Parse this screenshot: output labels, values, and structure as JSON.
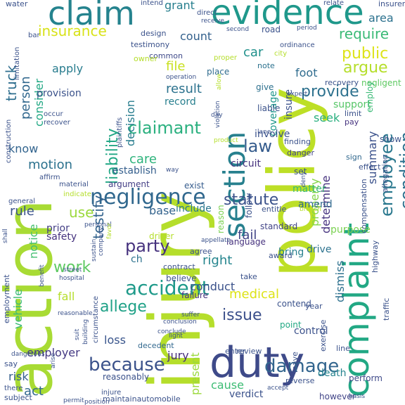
{
  "words": [
    {
      "text": "injury",
      "color": "#b5de2b"
    },
    {
      "text": "action",
      "color": "#a8db34"
    },
    {
      "text": "policy",
      "color": "#bddf26"
    },
    {
      "text": "evidence",
      "color": "#1f988b"
    },
    {
      "text": "claim",
      "color": "#25838e"
    },
    {
      "text": "duty",
      "color": "#3e4a89"
    },
    {
      "text": "complaint",
      "color": "#22a884"
    },
    {
      "text": "section",
      "color": "#27808e"
    },
    {
      "text": "negligence",
      "color": "#31688e"
    },
    {
      "text": "because",
      "color": "#3b528b"
    },
    {
      "text": "damage",
      "color": "#32658e"
    },
    {
      "text": "accident",
      "color": "#1f9a8a"
    },
    {
      "text": "employee",
      "color": "#2a788e"
    },
    {
      "text": "condition",
      "color": "#2c718e"
    },
    {
      "text": "party",
      "color": "#46327e"
    },
    {
      "text": "claimant",
      "color": "#2ab07f"
    },
    {
      "text": "insurance",
      "color": "#d8e219"
    },
    {
      "text": "allege",
      "color": "#1fa187"
    },
    {
      "text": "issue",
      "color": "#3c508b"
    },
    {
      "text": "statute",
      "color": "#3b528b"
    },
    {
      "text": "law",
      "color": "#365c8d"
    },
    {
      "text": "provide",
      "color": "#2d718e"
    },
    {
      "text": "work",
      "color": "#5ec962"
    },
    {
      "text": "testify",
      "color": "#33638d"
    },
    {
      "text": "liability",
      "color": "#22a785"
    },
    {
      "text": "truck",
      "color": "#2e6e8e"
    },
    {
      "text": "public",
      "color": "#dde318"
    },
    {
      "text": "argue",
      "color": "#b5de2b"
    },
    {
      "text": "require",
      "color": "#3aba76"
    },
    {
      "text": "grant",
      "color": "#277f8e"
    },
    {
      "text": "count",
      "color": "#34618d"
    },
    {
      "text": "car",
      "color": "#21918c"
    },
    {
      "text": "file",
      "color": "#c8e020"
    },
    {
      "text": "result",
      "color": "#2c728e"
    },
    {
      "text": "record",
      "color": "#277f8e"
    },
    {
      "text": "person",
      "color": "#31688e"
    },
    {
      "text": "consider",
      "color": "#22a884"
    },
    {
      "text": "apply",
      "color": "#287c8e"
    },
    {
      "text": "motion",
      "color": "#2c728e"
    },
    {
      "text": "care",
      "color": "#2eb37c"
    },
    {
      "text": "rule",
      "color": "#3b528b"
    },
    {
      "text": "use",
      "color": "#9bd93c"
    },
    {
      "text": "right",
      "color": "#25858e"
    },
    {
      "text": "fail",
      "color": "#414487"
    },
    {
      "text": "medical",
      "color": "#dde318"
    },
    {
      "text": "conduct",
      "color": "#3b528b"
    },
    {
      "text": "cause",
      "color": "#3dbc74"
    },
    {
      "text": "jury",
      "color": "#472d7b"
    },
    {
      "text": "act",
      "color": "#31688e"
    },
    {
      "text": "risk",
      "color": "#355f8d"
    },
    {
      "text": "loss",
      "color": "#39558c"
    },
    {
      "text": "employer",
      "color": "#443983"
    },
    {
      "text": "vehicle",
      "color": "#3aba76"
    },
    {
      "text": "notice",
      "color": "#44bf70"
    },
    {
      "text": "base",
      "color": "#33638d"
    },
    {
      "text": "decision",
      "color": "#287d8e"
    },
    {
      "text": "determine",
      "color": "#46337f"
    },
    {
      "text": "dismiss",
      "color": "#2d708e"
    },
    {
      "text": "property",
      "color": "#85d54a"
    },
    {
      "text": "seek",
      "color": "#29af7f"
    },
    {
      "text": "foot",
      "color": "#2f6c8e"
    },
    {
      "text": "insure",
      "color": "#3b518b"
    },
    {
      "text": "coverage",
      "color": "#1f978b"
    },
    {
      "text": "summary",
      "color": "#3b518b"
    },
    {
      "text": "verdict",
      "color": "#3b528b"
    },
    {
      "text": "present",
      "color": "#9bd93c"
    },
    {
      "text": "circuit",
      "color": "#46327e"
    },
    {
      "text": "bring",
      "color": "#277f8e"
    },
    {
      "text": "prior",
      "color": "#433e85"
    },
    {
      "text": "safety",
      "color": "#46337f"
    },
    {
      "text": "provision",
      "color": "#3b528b"
    },
    {
      "text": "establish",
      "color": "#355f8d"
    },
    {
      "text": "involve",
      "color": "#3b528b"
    },
    {
      "text": "support",
      "color": "#56c667"
    },
    {
      "text": "know",
      "color": "#32648e"
    },
    {
      "text": "matter",
      "color": "#3aba76"
    },
    {
      "text": "amend",
      "color": "#31688e"
    },
    {
      "text": "purpose",
      "color": "#7ad151"
    },
    {
      "text": "exist",
      "color": "#365c8d"
    },
    {
      "text": "include",
      "color": "#2a788e"
    },
    {
      "text": "argument",
      "color": "#433e85"
    },
    {
      "text": "believe",
      "color": "#3b528b"
    },
    {
      "text": "fall",
      "color": "#b5de2b"
    },
    {
      "text": "failure",
      "color": "#46327e"
    },
    {
      "text": "drive",
      "color": "#2c728e"
    },
    {
      "text": "area",
      "color": "#2c718e"
    },
    {
      "text": "however",
      "color": "#414487"
    },
    {
      "text": "reasonably",
      "color": "#3b528b"
    },
    {
      "text": "maintainautomobile",
      "color": "#3b528b"
    },
    {
      "text": "perform",
      "color": "#3e4989"
    },
    {
      "text": "decedent",
      "color": "#31688e"
    },
    {
      "text": "control",
      "color": "#3b518b"
    },
    {
      "text": "death",
      "color": "#25838e"
    },
    {
      "text": "ch",
      "color": "#2c728e"
    },
    {
      "text": "place",
      "color": "#2f6c8e"
    },
    {
      "text": "common",
      "color": "#3e4989"
    },
    {
      "text": "note",
      "color": "#2c728e"
    },
    {
      "text": "give",
      "color": "#2d708e"
    },
    {
      "text": "liable",
      "color": "#3b528b"
    },
    {
      "text": "lane",
      "color": "#3b528b"
    },
    {
      "text": "pay",
      "color": "#46337f"
    },
    {
      "text": "limit",
      "color": "#3b528b"
    },
    {
      "text": "recovery",
      "color": "#3b528b"
    },
    {
      "text": "negligent",
      "color": "#5ec962"
    },
    {
      "text": "employ",
      "color": "#3aba76"
    },
    {
      "text": "show",
      "color": "#3b528b"
    },
    {
      "text": "sign",
      "color": "#31688e"
    },
    {
      "text": "danger",
      "color": "#414487"
    },
    {
      "text": "finding",
      "color": "#3b528b"
    },
    {
      "text": "set",
      "color": "#3b528b"
    },
    {
      "text": "entitle",
      "color": "#3b528b"
    },
    {
      "text": "standard",
      "color": "#414487"
    },
    {
      "text": "language",
      "color": "#46327e"
    },
    {
      "text": "follow",
      "color": "#3b528b"
    },
    {
      "text": "reason",
      "color": "#7ad151"
    },
    {
      "text": "agree",
      "color": "#3b528b"
    },
    {
      "text": "award",
      "color": "#3b528b"
    },
    {
      "text": "contract",
      "color": "#3b528b"
    },
    {
      "text": "take",
      "color": "#3b528b"
    },
    {
      "text": "driver",
      "color": "#b5de2b"
    },
    {
      "text": "contend",
      "color": "#3b528b"
    },
    {
      "text": "point",
      "color": "#22a884"
    },
    {
      "text": "year",
      "color": "#3b528b"
    },
    {
      "text": "review",
      "color": "#3b528b"
    },
    {
      "text": "enter",
      "color": "#3b528b"
    },
    {
      "text": "leave",
      "color": "#3b528b"
    },
    {
      "text": "reverse",
      "color": "#3b528b"
    },
    {
      "text": "exercise",
      "color": "#3b528b"
    },
    {
      "text": "line",
      "color": "#3b528b"
    },
    {
      "text": "traffic",
      "color": "#3b528b"
    },
    {
      "text": "highway",
      "color": "#3b528b"
    },
    {
      "text": "compensation",
      "color": "#3b528b"
    },
    {
      "text": "allegation",
      "color": "#3b528b"
    },
    {
      "text": "effect",
      "color": "#3b528b"
    },
    {
      "text": "road",
      "color": "#3b528b"
    },
    {
      "text": "design",
      "color": "#3b528b"
    },
    {
      "text": "testimony",
      "color": "#3b528b"
    },
    {
      "text": "owner",
      "color": "#b5de2b"
    },
    {
      "text": "city",
      "color": "#b5de2b"
    },
    {
      "text": "ordinance",
      "color": "#3b528b"
    },
    {
      "text": "second",
      "color": "#3b528b"
    },
    {
      "text": "direct",
      "color": "#3b528b"
    },
    {
      "text": "receive",
      "color": "#3b528b"
    },
    {
      "text": "intend",
      "color": "#3b528b"
    },
    {
      "text": "relate",
      "color": "#3b528b"
    },
    {
      "text": "insurer",
      "color": "#3b528b"
    },
    {
      "text": "limitation",
      "color": "#3b528b"
    },
    {
      "text": "water",
      "color": "#3b528b"
    },
    {
      "text": "bar",
      "color": "#3b528b"
    },
    {
      "text": "construction",
      "color": "#3b528b"
    },
    {
      "text": "occur",
      "color": "#3b528b"
    },
    {
      "text": "recover",
      "color": "#3b528b"
    },
    {
      "text": "operation",
      "color": "#3b528b"
    },
    {
      "text": "violation",
      "color": "#3b528b"
    },
    {
      "text": "plaintiffs",
      "color": "#3b528b"
    },
    {
      "text": "affirm",
      "color": "#3b528b"
    },
    {
      "text": "material",
      "color": "#3b528b"
    },
    {
      "text": "indicate",
      "color": "#b5de2b"
    },
    {
      "text": "general",
      "color": "#3b528b"
    },
    {
      "text": "shall",
      "color": "#3b528b"
    },
    {
      "text": "personal",
      "color": "#3b528b"
    },
    {
      "text": "favor",
      "color": "#b5de2b"
    },
    {
      "text": "sustain",
      "color": "#3b528b"
    },
    {
      "text": "company",
      "color": "#3b528b"
    },
    {
      "text": "appellate",
      "color": "#3b528b"
    },
    {
      "text": "street",
      "color": "#3b528b"
    },
    {
      "text": "hospital",
      "color": "#3b528b"
    },
    {
      "text": "benefit",
      "color": "#3b528b"
    },
    {
      "text": "employment",
      "color": "#3b528b"
    },
    {
      "text": "reasonable",
      "color": "#3b528b"
    },
    {
      "text": "dangerous",
      "color": "#3b528b"
    },
    {
      "text": "say",
      "color": "#3b528b"
    },
    {
      "text": "arise",
      "color": "#3b528b"
    },
    {
      "text": "there",
      "color": "#3b528b"
    },
    {
      "text": "subject",
      "color": "#3b528b"
    },
    {
      "text": "suit",
      "color": "#3b528b"
    },
    {
      "text": "building",
      "color": "#3b528b"
    },
    {
      "text": "circumstance",
      "color": "#3b528b"
    },
    {
      "text": "injure",
      "color": "#3b528b"
    },
    {
      "text": "permit",
      "color": "#3b528b"
    },
    {
      "text": "position",
      "color": "#3b528b"
    },
    {
      "text": "suffer",
      "color": "#3b528b"
    },
    {
      "text": "conclude",
      "color": "#3b528b"
    },
    {
      "text": "conclusion",
      "color": "#3b528b"
    },
    {
      "text": "light",
      "color": "#3b528b"
    },
    {
      "text": "way",
      "color": "#3b528b"
    },
    {
      "text": "period",
      "color": "#3b528b"
    },
    {
      "text": "proper",
      "color": "#b5de2b"
    },
    {
      "text": "allow",
      "color": "#b5de2b"
    },
    {
      "text": "expert",
      "color": "#3b528b"
    },
    {
      "text": "product",
      "color": "#b5de2b"
    },
    {
      "text": "day",
      "color": "#3b528b"
    },
    {
      "text": "deny",
      "color": "#3b528b"
    },
    {
      "text": "breach",
      "color": "#b5de2b"
    },
    {
      "text": "basis",
      "color": "#3b528b"
    },
    {
      "text": "accept",
      "color": "#3b528b"
    },
    {
      "text": "create",
      "color": "#3b528b"
    }
  ]
}
